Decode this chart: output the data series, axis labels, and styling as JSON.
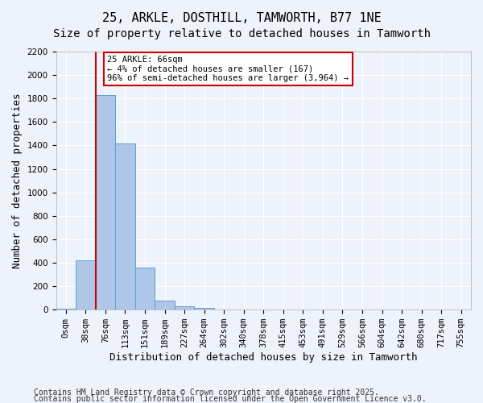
{
  "title1": "25, ARKLE, DOSTHILL, TAMWORTH, B77 1NE",
  "title2": "Size of property relative to detached houses in Tamworth",
  "xlabel": "Distribution of detached houses by size in Tamworth",
  "ylabel": "Number of detached properties",
  "footer1": "Contains HM Land Registry data © Crown copyright and database right 2025.",
  "footer2": "Contains public sector information licensed under the Open Government Licence v3.0.",
  "annotation_line1": "25 ARKLE: 66sqm",
  "annotation_line2": "← 4% of detached houses are smaller (167)",
  "annotation_line3": "96% of semi-detached houses are larger (3,964) →",
  "bar_values": [
    5,
    420,
    1830,
    1420,
    360,
    75,
    30,
    15,
    0,
    0,
    0,
    0,
    0,
    0,
    0,
    0,
    0,
    0,
    0,
    0,
    0
  ],
  "categories": [
    "0sqm",
    "38sqm",
    "76sqm",
    "113sqm",
    "151sqm",
    "189sqm",
    "227sqm",
    "264sqm",
    "302sqm",
    "340sqm",
    "378sqm",
    "415sqm",
    "453sqm",
    "491sqm",
    "529sqm",
    "566sqm",
    "604sqm",
    "642sqm",
    "680sqm",
    "717sqm",
    "755sqm"
  ],
  "bar_color": "#aec6e8",
  "bar_edge_color": "#5a9fd4",
  "ylim": [
    0,
    2200
  ],
  "yticks": [
    0,
    200,
    400,
    600,
    800,
    1000,
    1200,
    1400,
    1600,
    1800,
    2000,
    2200
  ],
  "background_color": "#eef2fb",
  "grid_color": "#ffffff",
  "annotation_box_color": "#ffffff",
  "annotation_box_edge": "#cc0000",
  "red_line_color": "#cc0000",
  "red_line_x": 1.5,
  "title_fontsize": 11,
  "axis_label_fontsize": 9,
  "tick_fontsize": 7.5,
  "footer_fontsize": 7
}
